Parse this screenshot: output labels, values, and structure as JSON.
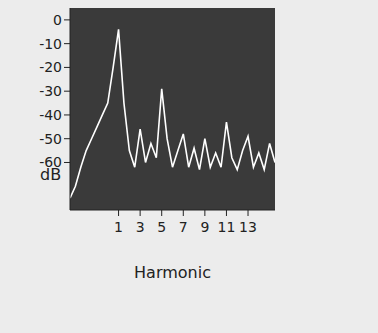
{
  "chart_data": {
    "type": "line",
    "x_label": "Harmonic",
    "y_label": "dB",
    "x": [
      -3.5,
      -3,
      -2.5,
      -2,
      -1.5,
      -1,
      -0.5,
      0,
      0.5,
      1,
      1.5,
      2,
      2.5,
      3,
      3.5,
      4,
      4.5,
      5,
      5.5,
      6,
      6.5,
      7,
      7.5,
      8,
      8.5,
      9,
      9.5,
      10,
      10.5,
      11,
      11.5,
      12,
      12.5,
      13,
      13.5,
      14,
      14.5,
      15,
      15.5
    ],
    "values": [
      -75,
      -70,
      -62,
      -55,
      -50,
      -45,
      -40,
      -35,
      -20,
      -4,
      -35,
      -55,
      -62,
      -46,
      -60,
      -52,
      -58,
      -29,
      -50,
      -62,
      -55,
      -48,
      -62,
      -54,
      -63,
      -50,
      -62,
      -56,
      -62,
      -43,
      -58,
      -63,
      -55,
      -49,
      -62,
      -56,
      -63,
      -52,
      -60
    ],
    "color": "#ffffff",
    "xlim": [
      -3.5,
      15.5
    ],
    "xticks": [
      1,
      3,
      5,
      7,
      9,
      11,
      13
    ],
    "ylim": [
      -80,
      5
    ],
    "yticks": [
      0,
      -10,
      -20,
      -30,
      -40,
      -50,
      -60
    ],
    "grid": false
  }
}
